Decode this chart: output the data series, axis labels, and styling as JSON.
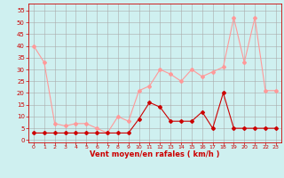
{
  "x": [
    0,
    1,
    2,
    3,
    4,
    5,
    6,
    7,
    8,
    9,
    10,
    11,
    12,
    13,
    14,
    15,
    16,
    17,
    18,
    19,
    20,
    21,
    22,
    23
  ],
  "wind_avg": [
    3,
    3,
    3,
    3,
    3,
    3,
    3,
    3,
    3,
    3,
    9,
    16,
    14,
    8,
    8,
    8,
    12,
    5,
    20,
    5,
    5,
    5,
    5,
    5
  ],
  "wind_gust": [
    40,
    33,
    7,
    6,
    7,
    7,
    5,
    3,
    10,
    8,
    21,
    23,
    30,
    28,
    25,
    30,
    27,
    29,
    31,
    52,
    33,
    52,
    21,
    21
  ],
  "bg_color": "#cff0f0",
  "line_avg_color": "#cc0000",
  "line_gust_color": "#ff9999",
  "grid_color": "#aaaaaa",
  "xlabel": "Vent moyen/en rafales ( km/h )",
  "yticks": [
    0,
    5,
    10,
    15,
    20,
    25,
    30,
    35,
    40,
    45,
    50,
    55
  ],
  "xlim": [
    -0.5,
    23.5
  ],
  "ylim": [
    -1,
    58
  ]
}
